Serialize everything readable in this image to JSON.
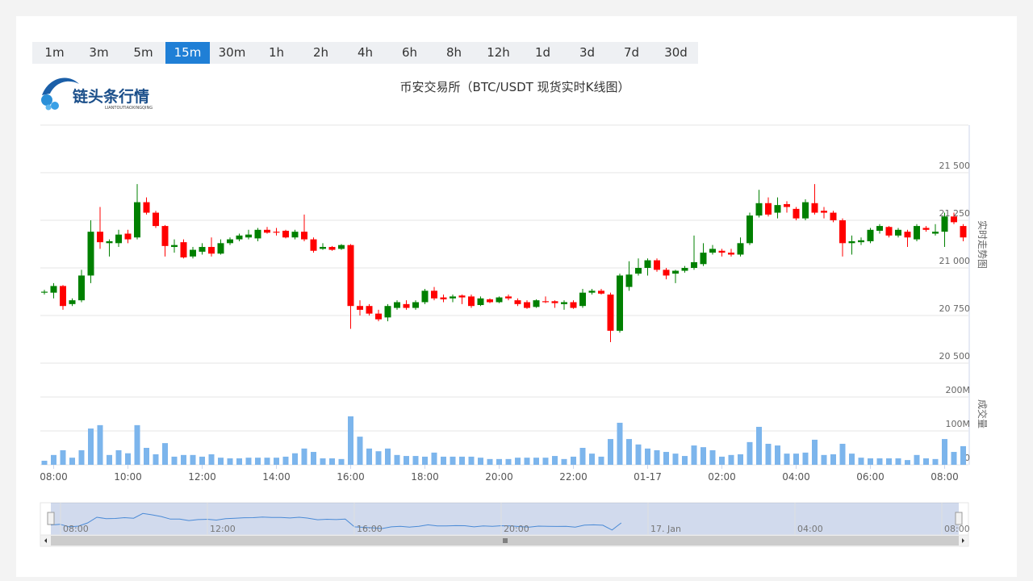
{
  "timeframes": {
    "options": [
      "1m",
      "3m",
      "5m",
      "15m",
      "30m",
      "1h",
      "2h",
      "4h",
      "6h",
      "8h",
      "12h",
      "1d",
      "3d",
      "7d",
      "30d"
    ],
    "active_index": 3
  },
  "logo": {
    "name": "链头条行情",
    "pinyin": "LIANTOUTIAOXINGQING"
  },
  "navigator": {
    "labels": [
      "08:00",
      "12:00",
      "16:00",
      "20:00",
      "17. Jan",
      "04:00",
      "08:00"
    ]
  },
  "chart_data": [
    {
      "type": "candlestick",
      "title": "币安交易所（BTC/USDT 现货实时K线图）",
      "y_axis_title": "实时走势图",
      "up_color": "#008000",
      "down_color": "#ff0000",
      "categories": [
        null,
        "08:00",
        null,
        null,
        null,
        null,
        null,
        null,
        null,
        "10:00",
        null,
        null,
        null,
        null,
        null,
        null,
        null,
        "12:00",
        null,
        null,
        null,
        null,
        null,
        null,
        null,
        "14:00",
        null,
        null,
        null,
        null,
        null,
        null,
        null,
        "16:00",
        null,
        null,
        null,
        null,
        null,
        null,
        null,
        "18:00",
        null,
        null,
        null,
        null,
        null,
        null,
        null,
        "20:00",
        null,
        null,
        null,
        null,
        null,
        null,
        null,
        "22:00",
        null,
        null,
        null,
        null,
        null,
        null,
        null,
        "01-17",
        null,
        null,
        null,
        null,
        null,
        null,
        null,
        "02:00",
        null,
        null,
        null,
        null,
        null,
        null,
        null,
        "04:00",
        null,
        null,
        null,
        null,
        null,
        null,
        null,
        "06:00",
        null,
        null,
        null,
        null,
        null,
        null,
        null,
        "08:00",
        null,
        null
      ],
      "open": [
        20870,
        20870,
        20905,
        20810,
        20830,
        20960,
        21190,
        21130,
        21130,
        21180,
        21160,
        21345,
        21290,
        21220,
        21110,
        21135,
        21060,
        21085,
        21110,
        21075,
        21130,
        21150,
        21160,
        21155,
        21200,
        21190,
        21195,
        21160,
        21190,
        21150,
        21100,
        21110,
        21100,
        21120,
        20800,
        20800,
        20760,
        20740,
        20790,
        20810,
        20790,
        20820,
        20880,
        20845,
        20840,
        20855,
        20850,
        20805,
        20835,
        20820,
        20850,
        20830,
        20820,
        20795,
        20825,
        20825,
        20810,
        20820,
        20800,
        20870,
        20880,
        20860,
        20670,
        20900,
        20970,
        21000,
        21040,
        20990,
        20970,
        20985,
        21000,
        21020,
        21080,
        21090,
        21080,
        21070,
        21130,
        21275,
        21340,
        21290,
        21335,
        21310,
        21260,
        21340,
        21300,
        21290,
        21250,
        21130,
        21135,
        21140,
        21195,
        21215,
        21170,
        21190,
        21150,
        21210,
        21180,
        21190,
        21270,
        21220
      ],
      "high": [
        20885,
        20920,
        20910,
        20840,
        20990,
        21250,
        21320,
        21150,
        21200,
        21200,
        21440,
        21370,
        21300,
        21225,
        21150,
        21150,
        21110,
        21130,
        21160,
        21150,
        21160,
        21180,
        21200,
        21210,
        21215,
        21210,
        21200,
        21200,
        21280,
        21160,
        21130,
        21115,
        21125,
        21125,
        20830,
        20810,
        20780,
        20810,
        20830,
        20830,
        20830,
        20890,
        20900,
        20860,
        20860,
        20860,
        20860,
        20850,
        20840,
        20850,
        20860,
        20840,
        20830,
        20835,
        20850,
        20830,
        20830,
        20830,
        20890,
        20890,
        20890,
        20870,
        20970,
        21035,
        21050,
        21050,
        21050,
        21000,
        20990,
        21010,
        21170,
        21130,
        21120,
        21100,
        21100,
        21160,
        21290,
        21410,
        21370,
        21370,
        21350,
        21320,
        21360,
        21440,
        21320,
        21300,
        21260,
        21170,
        21160,
        21210,
        21230,
        21220,
        21210,
        21200,
        21230,
        21220,
        21230,
        21290,
        21290,
        21230
      ],
      "low": [
        20860,
        20840,
        20780,
        20800,
        20820,
        20920,
        21100,
        21060,
        21110,
        21130,
        21150,
        21280,
        21210,
        21060,
        21080,
        21050,
        21050,
        21070,
        21060,
        21070,
        21120,
        21140,
        21150,
        21140,
        21180,
        21170,
        21155,
        21150,
        21140,
        21080,
        21095,
        21090,
        21095,
        20680,
        20750,
        20750,
        20720,
        20720,
        20780,
        20780,
        20780,
        20810,
        20830,
        20820,
        20820,
        20810,
        20790,
        20800,
        20815,
        20815,
        20830,
        20800,
        20785,
        20790,
        20815,
        20790,
        20780,
        20785,
        20790,
        20860,
        20860,
        20610,
        20660,
        20880,
        20960,
        20960,
        20980,
        20940,
        20920,
        20975,
        20990,
        21010,
        21070,
        21060,
        21060,
        21060,
        21120,
        21265,
        21270,
        21260,
        21290,
        21250,
        21250,
        21280,
        21260,
        21240,
        21060,
        21070,
        21120,
        21130,
        21180,
        21160,
        21160,
        21110,
        21140,
        21190,
        21170,
        21110,
        21230,
        21140
      ],
      "close": [
        20875,
        20905,
        20800,
        20830,
        20960,
        21190,
        21135,
        21140,
        21175,
        21150,
        21345,
        21290,
        21220,
        21115,
        21120,
        21055,
        21095,
        21110,
        21075,
        21130,
        21150,
        21170,
        21175,
        21200,
        21185,
        21185,
        21160,
        21190,
        21150,
        21090,
        21110,
        21095,
        21120,
        20800,
        20780,
        20760,
        20730,
        20800,
        20820,
        20790,
        20820,
        20880,
        20840,
        20835,
        20850,
        20845,
        20800,
        20840,
        20820,
        20845,
        20840,
        20810,
        20790,
        20830,
        20820,
        20815,
        20820,
        20790,
        20870,
        20880,
        20865,
        20670,
        20960,
        20965,
        21000,
        21040,
        20990,
        20960,
        20985,
        21000,
        21030,
        21080,
        21100,
        21080,
        21070,
        21130,
        21275,
        21340,
        21280,
        21330,
        21320,
        21260,
        21345,
        21290,
        21290,
        21250,
        21130,
        21140,
        21145,
        21200,
        21220,
        21170,
        21200,
        21160,
        21220,
        21200,
        21190,
        21270,
        21240,
        21160
      ],
      "ylim": [
        20500,
        21750
      ],
      "yticks": [
        {
          "value": 20500,
          "label": "20 500"
        },
        {
          "value": 20750,
          "label": "20 750"
        },
        {
          "value": 21000,
          "label": "21 000"
        },
        {
          "value": 21250,
          "label": "21 250"
        },
        {
          "value": 21500,
          "label": "21 500"
        }
      ],
      "grid": true
    },
    {
      "type": "bar",
      "y_axis_title": "成交量",
      "color": "#7cb5ec",
      "values": [
        12,
        29,
        43,
        21,
        43,
        107,
        117,
        29,
        43,
        34,
        117,
        50,
        31,
        64,
        24,
        29,
        29,
        24,
        31,
        21,
        19,
        19,
        21,
        21,
        21,
        21,
        24,
        34,
        48,
        38,
        19,
        19,
        17,
        143,
        83,
        48,
        40,
        48,
        29,
        26,
        26,
        24,
        36,
        24,
        24,
        24,
        24,
        21,
        17,
        17,
        17,
        21,
        21,
        21,
        21,
        26,
        17,
        24,
        50,
        33,
        24,
        76,
        124,
        76,
        60,
        48,
        43,
        38,
        33,
        26,
        57,
        52,
        43,
        24,
        29,
        31,
        67,
        112,
        62,
        57,
        33,
        33,
        36,
        74,
        29,
        31,
        62,
        33,
        21,
        19,
        19,
        19,
        19,
        14,
        29,
        19,
        17,
        76,
        38,
        55
      ],
      "ylim": [
        0,
        200
      ],
      "yticks": [
        0,
        {
          "value": 100,
          "label": "100M"
        },
        {
          "value": 200,
          "label": "200M"
        }
      ],
      "grid": true
    }
  ]
}
